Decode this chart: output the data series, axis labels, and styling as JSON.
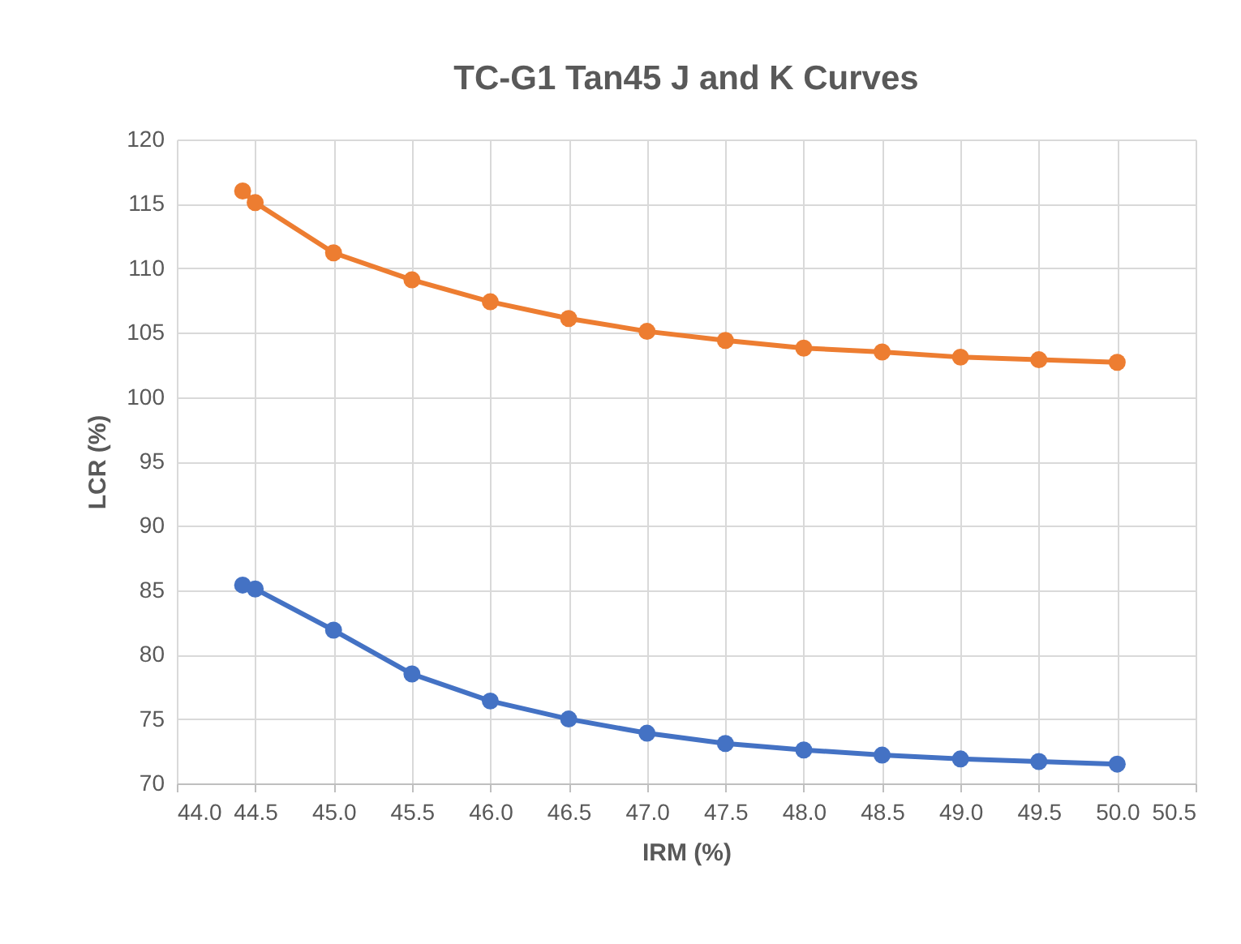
{
  "chart_data": {
    "type": "line",
    "title": "TC-G1 Tan45 J and K Curves",
    "xlabel": "IRM (%)",
    "ylabel": "LCR (%)",
    "x": [
      44.42,
      44.5,
      45.0,
      45.5,
      46.0,
      46.5,
      47.0,
      47.5,
      48.0,
      48.5,
      49.0,
      49.5,
      50.0
    ],
    "series": [
      {
        "color": "#ed7d31",
        "values": [
          116.0,
          115.1,
          111.2,
          109.1,
          107.4,
          106.1,
          105.1,
          104.4,
          103.8,
          103.5,
          103.1,
          102.9,
          102.7
        ]
      },
      {
        "color": "#4472c4",
        "values": [
          85.4,
          85.1,
          81.9,
          78.5,
          76.4,
          75.0,
          73.9,
          73.1,
          72.6,
          72.2,
          71.9,
          71.7,
          71.5
        ]
      }
    ],
    "xlim": [
      44.0,
      50.5
    ],
    "xticks": [
      {
        "value": 44,
        "label": "44.0"
      },
      44.5,
      {
        "value": 45,
        "label": "45.0"
      },
      45.5,
      {
        "value": 46,
        "label": "46.0"
      },
      46.5,
      {
        "value": 47,
        "label": "47.0"
      },
      47.5,
      {
        "value": 48,
        "label": "48.0"
      },
      48.5,
      {
        "value": 49,
        "label": "49.0"
      },
      49.5,
      {
        "value": 50,
        "label": "50.0"
      },
      50.5
    ],
    "ylim": [
      70,
      120
    ],
    "yticks": [
      70,
      75,
      80,
      85,
      90,
      95,
      100,
      105,
      110,
      115,
      120
    ],
    "grid": true,
    "legend": false,
    "marker": "circle",
    "line_style": "solid"
  }
}
